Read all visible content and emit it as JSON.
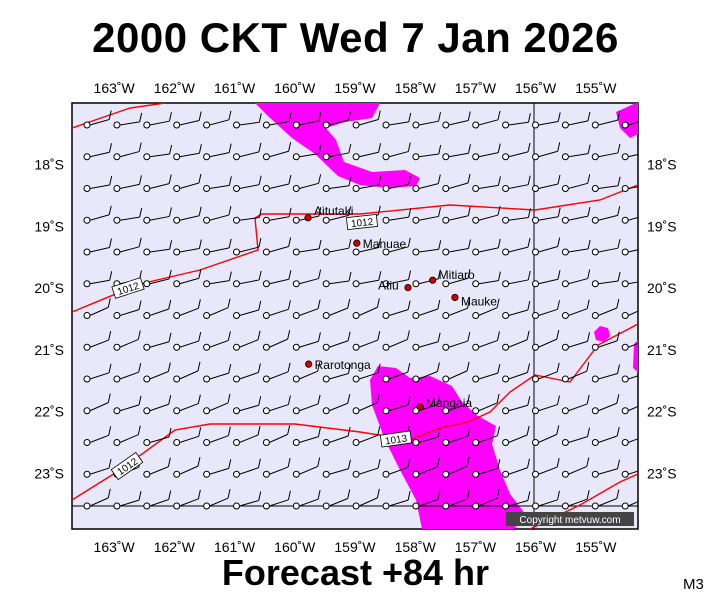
{
  "title": "2000 CKT Wed 7 Jan 2026",
  "footer": "Forecast +84 hr",
  "model_code": "M3",
  "copyright": "Copyright metvuw.com",
  "colors": {
    "background": "#e8e8fa",
    "rain": "#ff00ff",
    "isobar": "#ff0000",
    "land": "#cc0000"
  },
  "longitude_labels": [
    "163˚W",
    "162˚W",
    "161˚W",
    "160˚W",
    "159˚W",
    "158˚W",
    "157˚W",
    "156˚W",
    "155˚W"
  ],
  "latitude_labels": [
    "18˚S",
    "19˚S",
    "20˚S",
    "21˚S",
    "22˚S",
    "23˚S"
  ],
  "map_extent": {
    "lon_west": -163.7,
    "lon_east": -154.3,
    "lat_north": -17.0,
    "lat_south": -23.9
  },
  "places": [
    {
      "name": "Aitutaki",
      "lon": -159.78,
      "lat": -18.86
    },
    {
      "name": "Manuae",
      "lon": -158.97,
      "lat": -19.27
    },
    {
      "name": "Atiu",
      "lon": -158.12,
      "lat": -19.99
    },
    {
      "name": "Mitiaro",
      "lon": -157.71,
      "lat": -19.87
    },
    {
      "name": "Mauke",
      "lon": -157.34,
      "lat": -20.15
    },
    {
      "name": "Rarotonga",
      "lon": -159.77,
      "lat": -21.23
    },
    {
      "name": "Mangaia",
      "lon": -157.92,
      "lat": -21.92
    }
  ],
  "isobar_labels": [
    "1012",
    "1012",
    "1013",
    "1012"
  ]
}
